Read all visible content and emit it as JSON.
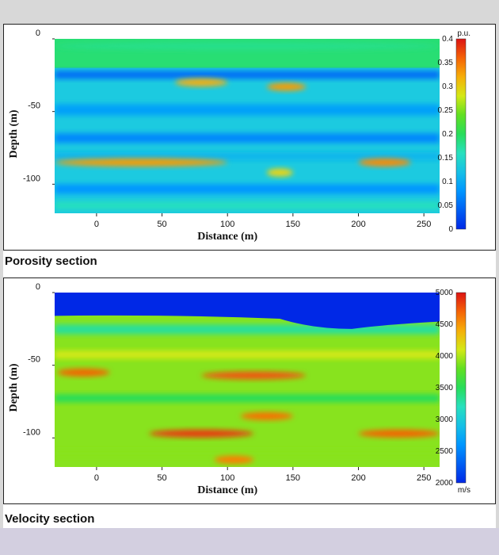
{
  "chart_data": [
    {
      "type": "heatmap",
      "caption": "Porosity section",
      "xlabel": "Distance (m)",
      "ylabel": "Depth (m)",
      "xlim": [
        -32,
        262
      ],
      "ylim": [
        -120,
        0
      ],
      "x_ticks": [
        "0",
        "50",
        "100",
        "150",
        "200",
        "250"
      ],
      "y_ticks": [
        "0",
        "-50",
        "-100"
      ],
      "colorbar": {
        "unit": "p.u.",
        "range": [
          0,
          0.4
        ],
        "ticks": [
          "0.4",
          "0.35",
          "0.3",
          "0.25",
          "0.2",
          "0.15",
          "0.1",
          "0.05",
          "0"
        ]
      },
      "layers": [
        {
          "depth": -5,
          "value": 0.18,
          "x_range": [
            -32,
            262
          ]
        },
        {
          "depth": -30,
          "value": 0.32,
          "x_range": [
            60,
            100
          ]
        },
        {
          "depth": -33,
          "value": 0.33,
          "x_range": [
            130,
            160
          ]
        },
        {
          "depth": -85,
          "value": 0.33,
          "x_range": [
            -32,
            100
          ]
        },
        {
          "depth": -92,
          "value": 0.3,
          "x_range": [
            130,
            150
          ]
        },
        {
          "depth": -85,
          "value": 0.34,
          "x_range": [
            200,
            240
          ]
        }
      ]
    },
    {
      "type": "heatmap",
      "caption": "Velocity section",
      "xlabel": "Distance (m)",
      "ylabel": "Depth (m)",
      "xlim": [
        -32,
        262
      ],
      "ylim": [
        -120,
        0
      ],
      "x_ticks": [
        "0",
        "50",
        "100",
        "150",
        "200",
        "250"
      ],
      "y_ticks": [
        "0",
        "-50",
        "-100"
      ],
      "colorbar": {
        "unit": "m/s",
        "range": [
          2000,
          5000
        ],
        "ticks": [
          "5000",
          "4500",
          "4000",
          "3500",
          "3000",
          "2500",
          "2000"
        ]
      },
      "layers": [
        {
          "depth": -10,
          "value": 2000,
          "x_range": [
            -32,
            262
          ]
        },
        {
          "depth": -55,
          "value": 4700,
          "x_range": [
            -30,
            10
          ]
        },
        {
          "depth": -57,
          "value": 4750,
          "x_range": [
            80,
            160
          ]
        },
        {
          "depth": -85,
          "value": 4650,
          "x_range": [
            110,
            150
          ]
        },
        {
          "depth": -97,
          "value": 4850,
          "x_range": [
            40,
            120
          ]
        },
        {
          "depth": -97,
          "value": 4700,
          "x_range": [
            200,
            262
          ]
        },
        {
          "depth": -115,
          "value": 4600,
          "x_range": [
            90,
            120
          ]
        }
      ]
    }
  ]
}
